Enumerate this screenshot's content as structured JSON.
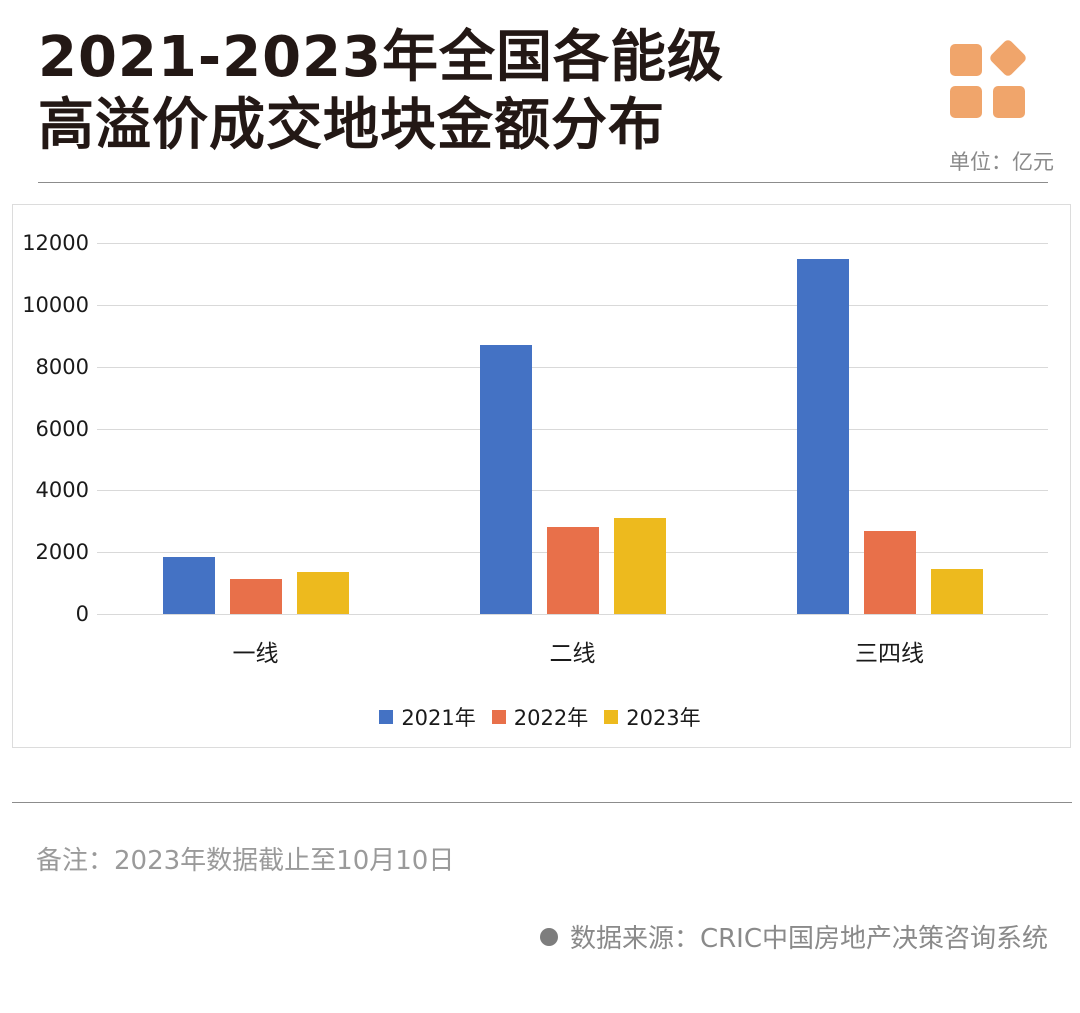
{
  "header": {
    "title_line1": "2021-2023年全国各能级",
    "title_line2": "高溢价成交地块金额分布",
    "unit_label": "单位：亿元",
    "logo_icon": "four-squares-logo-icon",
    "logo_color": "#F0A56B"
  },
  "chart_data": {
    "type": "bar",
    "title": "2021-2023年全国各能级高溢价成交地块金额分布",
    "xlabel": "",
    "ylabel": "亿元",
    "ylim": [
      0,
      12000
    ],
    "yticks": [
      "0",
      "2000",
      "4000",
      "6000",
      "8000",
      "10000",
      "12000"
    ],
    "grid": true,
    "legend_position": "bottom",
    "categories": [
      "一线",
      "二线",
      "三四线"
    ],
    "series": [
      {
        "name": "2021年",
        "color": "#4472C4",
        "values": [
          1840,
          8700,
          11480
        ]
      },
      {
        "name": "2022年",
        "color": "#E8704A",
        "values": [
          1130,
          2820,
          2690
        ]
      },
      {
        "name": "2023年",
        "color": "#EDBA1E",
        "values": [
          1360,
          3100,
          1460
        ]
      }
    ]
  },
  "footer": {
    "note": "备注：2023年数据截止至10月10日",
    "source": "数据来源：CRIC中国房地产决策咨询系统"
  }
}
